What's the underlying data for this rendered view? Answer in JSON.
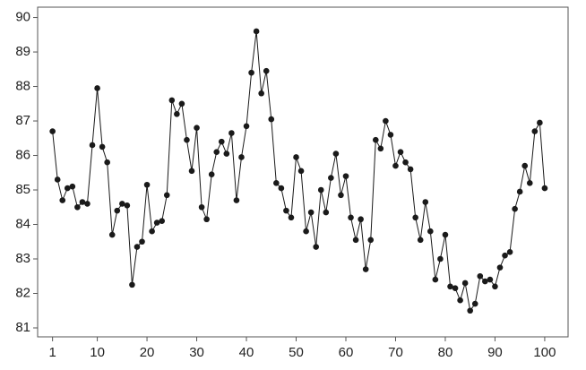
{
  "chart_data": {
    "type": "line",
    "x": [
      1,
      2,
      3,
      4,
      5,
      6,
      7,
      8,
      9,
      10,
      11,
      12,
      13,
      14,
      15,
      16,
      17,
      18,
      19,
      20,
      21,
      22,
      23,
      24,
      25,
      26,
      27,
      28,
      29,
      30,
      31,
      32,
      33,
      34,
      35,
      36,
      37,
      38,
      39,
      40,
      41,
      42,
      43,
      44,
      45,
      46,
      47,
      48,
      49,
      50,
      51,
      52,
      53,
      54,
      55,
      56,
      57,
      58,
      59,
      60,
      61,
      62,
      63,
      64,
      65,
      66,
      67,
      68,
      69,
      70,
      71,
      72,
      73,
      74,
      75,
      76,
      77,
      78,
      79,
      80,
      81,
      82,
      83,
      84,
      85,
      86,
      87,
      88,
      89,
      90,
      91,
      92,
      93,
      94,
      95,
      96,
      97,
      98,
      99,
      100
    ],
    "series": [
      {
        "color": "#1a1a1a",
        "values": [
          86.7,
          85.3,
          84.7,
          85.05,
          85.1,
          84.5,
          84.65,
          84.6,
          86.3,
          87.95,
          86.25,
          85.8,
          83.7,
          84.4,
          84.6,
          84.55,
          82.25,
          83.35,
          83.5,
          85.15,
          83.8,
          84.05,
          84.1,
          84.85,
          87.6,
          87.2,
          87.5,
          86.45,
          85.55,
          86.8,
          84.5,
          84.15,
          85.45,
          86.1,
          86.4,
          86.05,
          86.65,
          84.7,
          85.95,
          86.85,
          88.4,
          89.6,
          87.8,
          88.45,
          87.05,
          85.2,
          85.05,
          84.4,
          84.2,
          85.95,
          85.55,
          83.8,
          84.35,
          83.35,
          85.0,
          84.35,
          85.35,
          86.05,
          84.85,
          85.4,
          84.2,
          83.55,
          84.15,
          82.7,
          83.55,
          86.45,
          86.2,
          87.0,
          86.6,
          85.7,
          86.1,
          85.8,
          85.6,
          84.2,
          83.55,
          84.65,
          83.8,
          82.4,
          83.0,
          83.7,
          82.2,
          82.15,
          81.8,
          82.3,
          81.5,
          81.7,
          82.5,
          82.35,
          82.4,
          82.2,
          82.75,
          83.1,
          83.2,
          84.45,
          84.95,
          85.7,
          85.2,
          86.7,
          86.95,
          85.05
        ]
      }
    ],
    "xlim": [
      -2,
      104.7
    ],
    "ylim": [
      80.74,
      90.3
    ],
    "xticks": [
      1,
      10,
      20,
      30,
      40,
      50,
      60,
      70,
      80,
      90,
      100
    ],
    "yticks": [
      81,
      82,
      83,
      84,
      85,
      86,
      87,
      88,
      89,
      90
    ]
  }
}
